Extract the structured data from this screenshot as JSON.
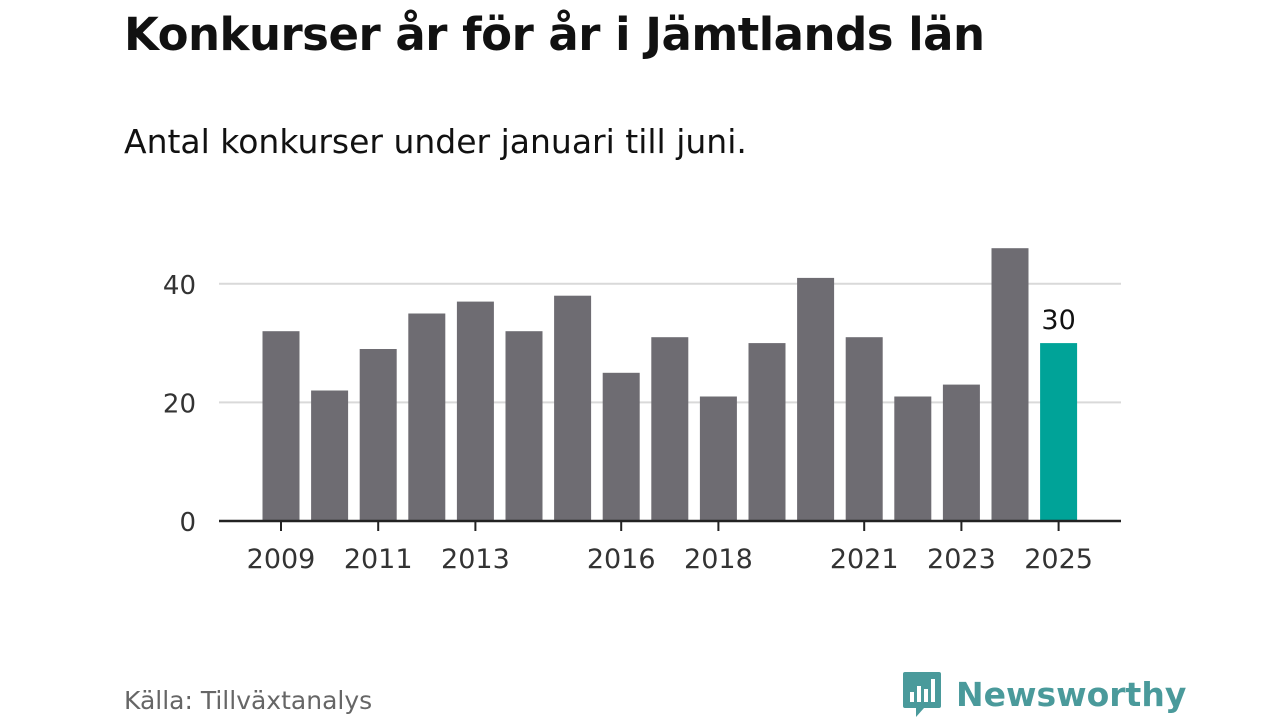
{
  "header": {
    "title": "Konkurser år för år i Jämtlands län",
    "subtitle": "Antal konkurser under januari till juni."
  },
  "footer": {
    "source": "Källa: Tillväxtanalys",
    "brand_name": "Newsworthy",
    "brand_icon": "newsworthy-logo-icon"
  },
  "colors": {
    "bar": "#6e6c72",
    "highlight": "#00a398",
    "grid": "#d9d9d9",
    "axis": "#222222",
    "brand": "#4a9a9b"
  },
  "chart_data": {
    "type": "bar",
    "categories": [
      "2009",
      "2010",
      "2011",
      "2012",
      "2013",
      "2014",
      "2015",
      "2016",
      "2017",
      "2018",
      "2019",
      "2020",
      "2021",
      "2022",
      "2023",
      "2024",
      "2025"
    ],
    "values": [
      32,
      22,
      29,
      35,
      37,
      32,
      38,
      25,
      31,
      21,
      30,
      41,
      31,
      21,
      23,
      46,
      30
    ],
    "highlight_category": "2025",
    "data_labels": [
      {
        "category": "2025",
        "text": "30"
      }
    ],
    "x_tick_labels": [
      "2009",
      "2011",
      "2013",
      "2016",
      "2018",
      "2021",
      "2023",
      "2025"
    ],
    "y_ticks": [
      0,
      20,
      40
    ],
    "ylim": [
      0,
      48
    ],
    "grid": true,
    "xlabel": "",
    "ylabel": ""
  }
}
